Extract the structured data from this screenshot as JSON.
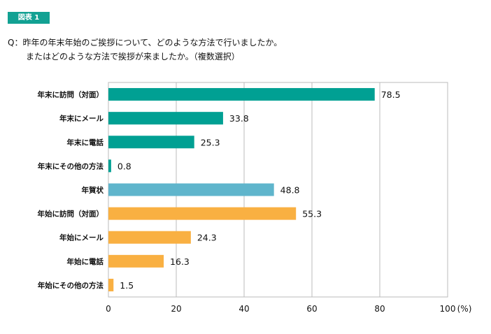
{
  "figure_label": "図表 1",
  "question": {
    "line1": "Q：昨年の年末年始のご挨拶について、どのような方法で行いましたか。",
    "line2": "またはどのような方法で挨拶が来ましたか。（複数選択）"
  },
  "chart_data": {
    "type": "bar",
    "orientation": "horizontal",
    "categories": [
      "年末に訪問（対面）",
      "年末にメール",
      "年末に電話",
      "年末にその他の方法",
      "年賀状",
      "年始に訪問（対面）",
      "年始にメール",
      "年始に電話",
      "年始にその他の方法"
    ],
    "values": [
      78.5,
      33.8,
      25.3,
      0.8,
      48.8,
      55.3,
      24.3,
      16.3,
      1.5
    ],
    "value_labels": [
      "78.5",
      "33.8",
      "25.3",
      "0.8",
      "48.8",
      "55.3",
      "24.3",
      "16.3",
      "1.5"
    ],
    "bar_colors": [
      "#00a093",
      "#00a093",
      "#00a093",
      "#00a093",
      "#5fb5cc",
      "#f9b042",
      "#f9b042",
      "#f9b042",
      "#f9b042"
    ],
    "xlim": [
      0,
      100
    ],
    "xticks": [
      "0",
      "20",
      "40",
      "60",
      "80",
      "100"
    ],
    "xunit": "(%)",
    "grid": true
  }
}
